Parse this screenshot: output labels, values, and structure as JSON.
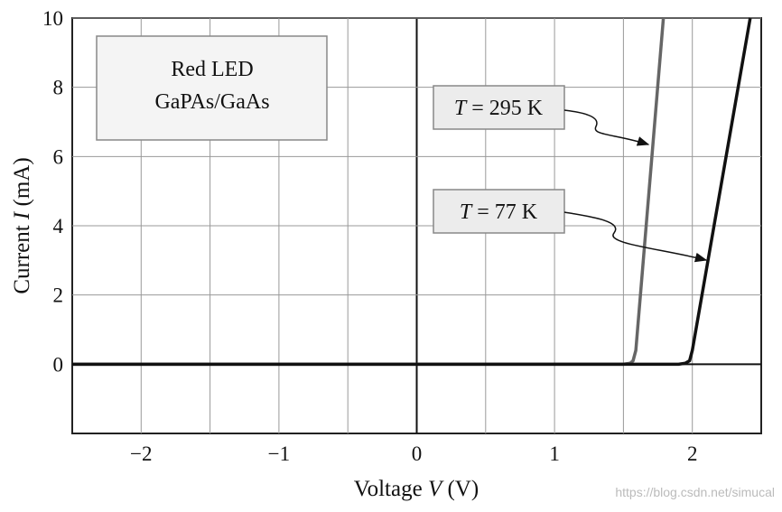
{
  "chart_data": {
    "type": "line",
    "annotation_lines": [
      "Red LED",
      "GaPAs/GaAs"
    ],
    "xlabel": {
      "text": "Voltage",
      "symbol": "V",
      "unit": "(V)"
    },
    "ylabel": {
      "text": "Current",
      "symbol": "I",
      "unit": "(mA)"
    },
    "xlim": [
      -2.5,
      2.5
    ],
    "ylim": [
      -2,
      10
    ],
    "xticks": [
      {
        "value": -2,
        "label": "−2"
      },
      {
        "value": -1,
        "label": "−1"
      },
      0,
      1,
      2
    ],
    "yticks": [
      0,
      2,
      4,
      6,
      8,
      10
    ],
    "x_minor_grid": [
      -1.5,
      -0.5,
      0.5,
      1.5
    ],
    "grid": true,
    "series": [
      {
        "name": "T = 295 K",
        "color": "#666666",
        "x": [
          -2.5,
          1.5,
          1.55,
          1.57,
          1.59,
          1.79
        ],
        "values": [
          0,
          0,
          0.03,
          0.1,
          0.4,
          10
        ]
      },
      {
        "name": "T = 77 K",
        "color": "#111111",
        "x": [
          -2.5,
          1.9,
          1.95,
          1.98,
          2.0,
          2.42
        ],
        "values": [
          0,
          0,
          0.03,
          0.1,
          0.4,
          10
        ]
      }
    ],
    "watermark": "https://blog.csdn.net/simucal"
  }
}
